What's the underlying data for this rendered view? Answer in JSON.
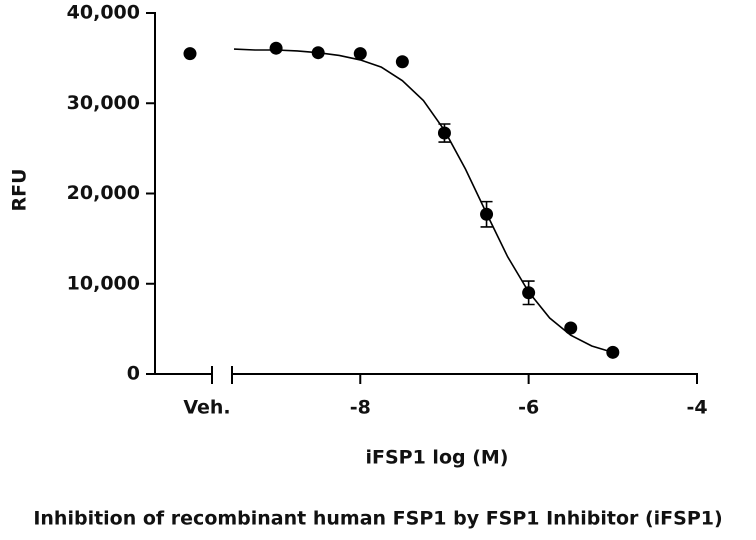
{
  "chart_data": {
    "type": "scatter",
    "title": "Inhibition of recombinant human FSP1 by FSP1 Inhibitor (iFSP1)",
    "x_label": "iFSP1 log (M)",
    "y_label": "RFU",
    "xlim": [
      -9.5,
      -4
    ],
    "xticks": [
      -8,
      -6,
      -4
    ],
    "ylim": [
      0,
      40000
    ],
    "yticks": [
      0,
      {
        "value": 10000,
        "label": "10,000"
      },
      {
        "value": 20000,
        "label": "20,000"
      },
      {
        "value": 30000,
        "label": "30,000"
      },
      {
        "value": 40000,
        "label": "40,000"
      }
    ],
    "vehicle": {
      "category": "Veh.",
      "value": 35500
    },
    "color": "#000000",
    "series": [
      {
        "x": [
          -9,
          -8.5,
          -8,
          -7.5,
          -7,
          -6.5,
          -6,
          -5.5,
          -5
        ],
        "values": [
          36100,
          35600,
          35500,
          34600,
          26700,
          17700,
          9000,
          5100,
          2400
        ],
        "errors": [
          null,
          null,
          null,
          null,
          1000,
          1400,
          1300,
          null,
          null
        ]
      }
    ],
    "fit": {
      "x": [
        -9.5,
        -9.25,
        -9,
        -8.75,
        -8.5,
        -8.25,
        -8,
        -7.75,
        -7.5,
        -7.25,
        -7,
        -6.75,
        -6.5,
        -6.25,
        -6,
        -5.75,
        -5.5,
        -5.25,
        -5
      ],
      "values": [
        36000,
        35900,
        35900,
        35800,
        35600,
        35300,
        34800,
        34000,
        32500,
        30300,
        27000,
        22700,
        17800,
        13000,
        9100,
        6200,
        4300,
        3100,
        2400
      ]
    }
  }
}
